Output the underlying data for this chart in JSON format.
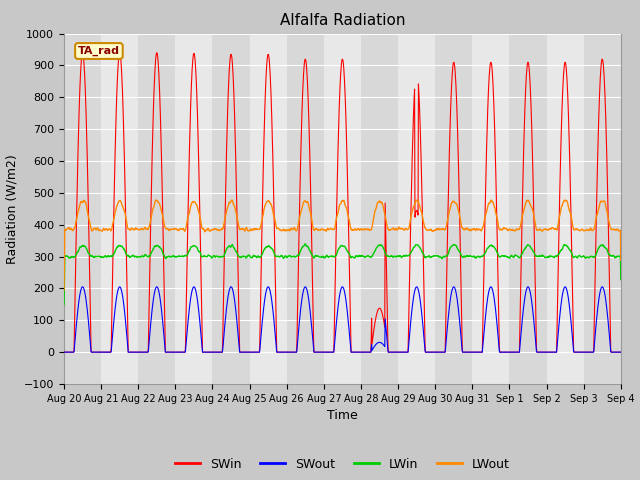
{
  "title": "Alfalfa Radiation",
  "xlabel": "Time",
  "ylabel": "Radiation (W/m2)",
  "ylim": [
    -100,
    1000
  ],
  "yticks": [
    -100,
    0,
    100,
    200,
    300,
    400,
    500,
    600,
    700,
    800,
    900,
    1000
  ],
  "fig_bg_color": "#c8c8c8",
  "plot_bg_color": "#e0e0e0",
  "legend_label": "TA_rad",
  "series_colors": {
    "SWin": "#ff0000",
    "SWout": "#0000ff",
    "LWin": "#00cc00",
    "LWout": "#ff8800"
  },
  "n_days": 15,
  "tick_labels": [
    "Aug 20",
    "Aug 21",
    "Aug 22",
    "Aug 23",
    "Aug 24",
    "Aug 25",
    "Aug 26",
    "Aug 27",
    "Aug 28",
    "Aug 29",
    "Aug 30",
    "Aug 31",
    "Sep 1",
    "Sep 2",
    "Sep 3",
    "Sep 4"
  ],
  "dt_hours": 0.25,
  "seed": 42
}
